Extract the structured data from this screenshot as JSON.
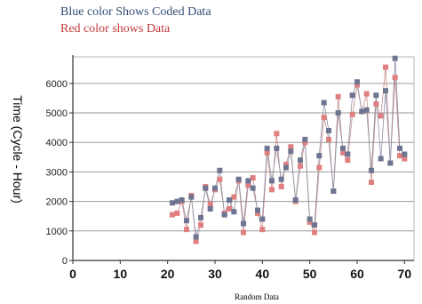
{
  "legend": {
    "blue_text": "Blue color Shows Coded Data",
    "red_text": "Red color shows Data",
    "blue_color": "#334d77",
    "red_color": "#c0383c"
  },
  "chart_data": {
    "type": "line",
    "xlabel": "Random Data",
    "ylabel": "Time (Cycle - Hour)",
    "xlim": [
      0,
      72
    ],
    "ylim": [
      0,
      6900
    ],
    "xticks": [
      0,
      10,
      20,
      30,
      40,
      50,
      60,
      70
    ],
    "yticks": [
      0,
      1000,
      2000,
      3000,
      4000,
      5000,
      6000
    ],
    "grid": "horizontal",
    "series": [
      {
        "name": "Coded Data",
        "color": "#6e7591",
        "x": [
          21,
          22,
          23,
          24,
          25,
          26,
          27,
          28,
          29,
          30,
          31,
          32,
          33,
          34,
          35,
          36,
          37,
          38,
          39,
          40,
          41,
          42,
          43,
          44,
          45,
          46,
          47,
          48,
          49,
          50,
          51,
          52,
          53,
          54,
          55,
          56,
          57,
          58,
          59,
          60,
          61,
          62,
          63,
          64,
          65,
          66,
          67,
          68,
          69,
          70
        ],
        "y": [
          1950,
          2000,
          2050,
          1350,
          2150,
          800,
          1450,
          2450,
          1750,
          2450,
          3050,
          1550,
          2050,
          1650,
          2750,
          1250,
          2700,
          2450,
          1700,
          1400,
          3800,
          2700,
          3800,
          2750,
          3150,
          3700,
          2050,
          3400,
          4100,
          1400,
          1200,
          3550,
          5350,
          4400,
          2350,
          5000,
          3800,
          3600,
          5600,
          6050,
          5050,
          5100,
          3050,
          5600,
          3450,
          5750,
          3300,
          6850,
          3800,
          3600
        ]
      },
      {
        "name": "Data",
        "color": "#e07f80",
        "x": [
          21,
          22,
          23,
          24,
          25,
          26,
          27,
          28,
          29,
          30,
          31,
          32,
          33,
          34,
          35,
          36,
          37,
          38,
          39,
          40,
          41,
          42,
          43,
          44,
          45,
          46,
          47,
          48,
          49,
          50,
          51,
          52,
          53,
          54,
          55,
          56,
          57,
          58,
          59,
          60,
          61,
          62,
          63,
          64,
          65,
          66,
          67,
          68,
          69,
          70
        ],
        "y": [
          1550,
          1600,
          2000,
          1050,
          2200,
          650,
          1200,
          2500,
          1900,
          2400,
          2750,
          1600,
          1750,
          2150,
          2700,
          950,
          2550,
          2800,
          1600,
          1050,
          3650,
          2400,
          4300,
          2500,
          3250,
          3850,
          2000,
          3200,
          4000,
          1300,
          950,
          3150,
          4850,
          4100,
          2350,
          5550,
          3650,
          3400,
          4950,
          5950,
          5050,
          5650,
          2650,
          5300,
          4900,
          6550,
          3300,
          6200,
          3550,
          3450
        ]
      }
    ]
  }
}
